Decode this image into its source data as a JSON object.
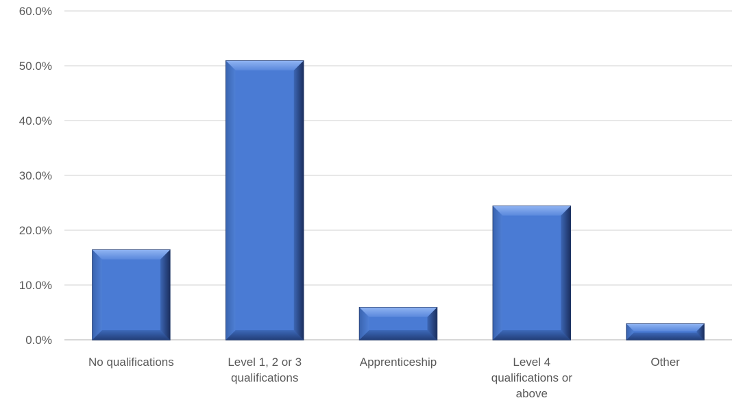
{
  "chart_data": {
    "type": "bar",
    "categories": [
      [
        "No qualifications"
      ],
      [
        "Level 1, 2 or 3",
        "qualifications"
      ],
      [
        "Apprenticeship"
      ],
      [
        "Level 4",
        "qualifications or",
        "above"
      ],
      [
        "Other"
      ]
    ],
    "values": [
      16.4,
      50.9,
      5.9,
      24.4,
      2.9
    ],
    "value_unit": "%",
    "ylim": [
      0,
      60
    ],
    "yticks": [
      0,
      10,
      20,
      30,
      40,
      50,
      60
    ],
    "ytick_labels": [
      "0.0%",
      "10.0%",
      "20.0%",
      "30.0%",
      "40.0%",
      "50.0%",
      "60.0%"
    ],
    "title": "",
    "xlabel": "",
    "ylabel": "",
    "grid": true,
    "legend": "none",
    "bar_color": "#4a7bd4",
    "bar_edge_dark": "#1f3566",
    "bar_highlight": "#7da6ee",
    "grid_color": "#d9d9d9",
    "text_color": "#595959"
  }
}
